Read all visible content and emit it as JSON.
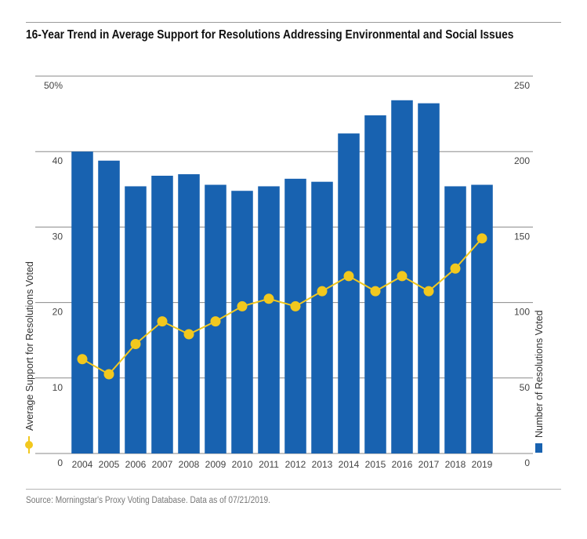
{
  "title": "16-Year Trend in Average Support for Resolutions Addressing Environmental and Social Issues",
  "source": "Source: Morningstar's Proxy Voting Database. Data as of 07/21/2019.",
  "colors": {
    "bar": "#1862b0",
    "line": "#f2c81e",
    "marker": "#f2c81e",
    "grid": "#8a8a8a"
  },
  "chart_data": {
    "type": "bar+line",
    "categories": [
      "2004",
      "2005",
      "2006",
      "2007",
      "2008",
      "2009",
      "2010",
      "2011",
      "2012",
      "2013",
      "2014",
      "2015",
      "2016",
      "2017",
      "2018",
      "2019"
    ],
    "series": [
      {
        "name": "Number of Resolutions Voted",
        "type": "bar",
        "axis": "right",
        "values": [
          200,
          194,
          177,
          184,
          185,
          178,
          174,
          177,
          182,
          180,
          212,
          224,
          234,
          232,
          177,
          178
        ]
      },
      {
        "name": "Average Support for Resolutions Voted",
        "type": "line",
        "axis": "left",
        "values": [
          12.5,
          10.5,
          14.5,
          17.5,
          15.8,
          17.5,
          19.5,
          20.5,
          19.5,
          21.5,
          23.5,
          21.5,
          23.5,
          21.5,
          24.5,
          28.5
        ]
      }
    ],
    "left_axis": {
      "label": "Average Support for Resolutions Voted",
      "range": [
        0,
        50
      ],
      "ticks": [
        "0",
        "10",
        "20",
        "30",
        "40",
        "50%"
      ]
    },
    "right_axis": {
      "label": "Number of Resolutions Voted",
      "range": [
        0,
        250
      ],
      "ticks": [
        "0",
        "50",
        "100",
        "150",
        "200",
        "250"
      ]
    },
    "grid": true
  }
}
